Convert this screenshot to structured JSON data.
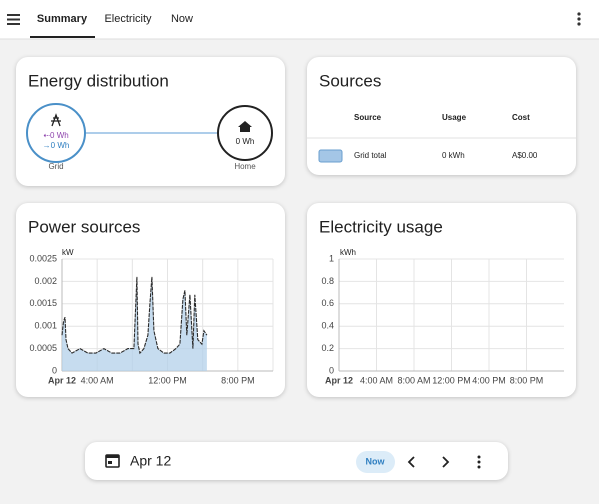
{
  "tabs": [
    "Summary",
    "Electricity",
    "Now"
  ],
  "energy_distribution": {
    "title": "Energy distribution",
    "grid": {
      "label": "Grid",
      "from": "⇠0 Wh",
      "to": "→0 Wh"
    },
    "home": {
      "label": "Home",
      "value": "0 Wh"
    }
  },
  "sources": {
    "title": "Sources",
    "headers": [
      "Source",
      "Usage",
      "Cost"
    ],
    "rows": [
      [
        "Grid total",
        "0 kWh",
        "A$0.00"
      ]
    ]
  },
  "chart_data": [
    {
      "type": "area",
      "title": "Power sources",
      "y_unit": "kW",
      "color": "#2b2b2b",
      "fill": "#b3d0ea",
      "x": [
        0,
        0.17,
        0.34,
        0.45,
        0.68,
        1.14,
        2.05,
        2.95,
        3.86,
        4.77,
        5.68,
        6.59,
        7.5,
        8.18,
        8.52,
        8.64,
        8.86,
        9.32,
        9.77,
        10.0,
        10.23,
        10.45,
        10.91,
        11.59,
        12.27,
        12.95,
        13.41,
        13.75,
        13.98,
        14.2,
        14.55,
        14.89,
        15.11,
        15.45,
        15.91,
        16.14,
        16.48
      ],
      "values": [
        0.0008,
        0.0011,
        0.0012,
        0.0007,
        0.0005,
        0.0004,
        0.0005,
        0.0004,
        0.0004,
        0.0005,
        0.0004,
        0.0004,
        0.0005,
        0.0005,
        0.0021,
        0.0006,
        0.0004,
        0.0005,
        0.0008,
        0.0015,
        0.0021,
        0.0009,
        0.0005,
        0.0004,
        0.0004,
        0.0005,
        0.0006,
        0.0016,
        0.0018,
        0.0008,
        0.0017,
        0.0005,
        0.0017,
        0.0007,
        0.0006,
        0.0009,
        0.0008
      ],
      "xlim": [
        0,
        24
      ],
      "xticks": [
        {
          "value": 0,
          "label": "Apr 12"
        },
        {
          "value": 4,
          "label": "4:00 AM"
        },
        {
          "value": 8,
          "label": null
        },
        {
          "value": 12,
          "label": "12:00 PM"
        },
        {
          "value": 16,
          "label": null
        },
        {
          "value": 20,
          "label": "8:00 PM"
        },
        {
          "value": 24,
          "label": null
        }
      ],
      "ylim": [
        0,
        0.0025
      ],
      "yticks": [
        0,
        0.0005,
        0.001,
        0.0015,
        0.002,
        0.0025
      ],
      "grid": true
    },
    {
      "type": "bar",
      "title": "Electricity usage",
      "y_unit": "kWh",
      "xlim": [
        0,
        24
      ],
      "xticks": [
        {
          "value": 0,
          "label": "Apr 12"
        },
        {
          "value": 4,
          "label": "4:00 AM"
        },
        {
          "value": 8,
          "label": "8:00 AM"
        },
        {
          "value": 12,
          "label": "12:00 PM"
        },
        {
          "value": 16,
          "label": "4:00 PM"
        },
        {
          "value": 20,
          "label": "8:00 PM"
        }
      ],
      "ylim": [
        0,
        1
      ],
      "yticks": [
        0,
        0.2,
        0.4,
        0.6,
        0.8,
        1
      ],
      "grid": true
    }
  ],
  "date_bar": {
    "date": "Apr 12",
    "now": "Now"
  }
}
